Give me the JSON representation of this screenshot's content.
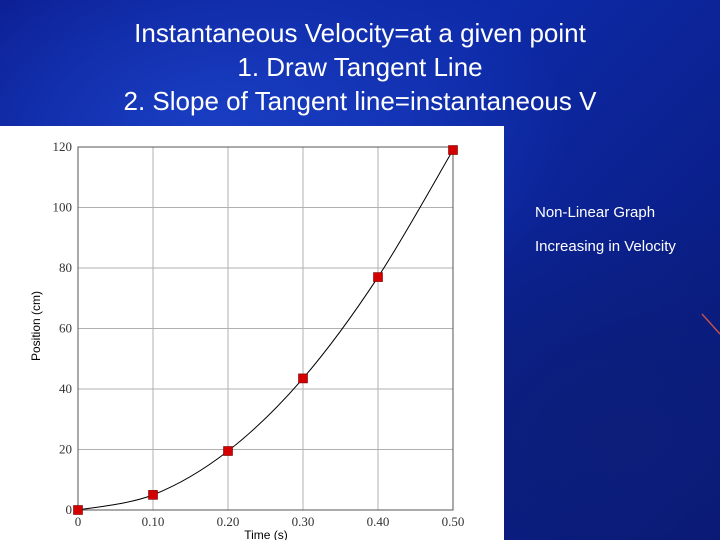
{
  "slide": {
    "title_lines": [
      "Instantaneous Velocity=at a given point",
      "1. Draw Tangent Line",
      "2. Slope of Tangent line=instantaneous V"
    ],
    "notes": [
      "Non-Linear Graph",
      "Increasing in Velocity"
    ]
  },
  "colors": {
    "background": "#0d2aa8",
    "title_text": "#ffffff",
    "marker": "#d40000",
    "curve": "#000000",
    "grid": "#b0b0b0",
    "decorative_line": "#c0504d"
  },
  "chart_data": {
    "type": "scatter",
    "title": "",
    "xlabel": "Time (s)",
    "ylabel": "Position (cm)",
    "x": [
      0,
      0.1,
      0.2,
      0.3,
      0.4,
      0.5
    ],
    "series": [
      {
        "values": [
          0,
          5,
          19.5,
          43.5,
          77,
          119
        ]
      }
    ],
    "fit_curve": "smooth increasing curve through points",
    "xlim": [
      0,
      0.5
    ],
    "ylim": [
      0,
      120
    ],
    "xticks": [
      "0",
      "0.10",
      "0.20",
      "0.30",
      "0.40",
      "0.50"
    ],
    "yticks": [
      "0",
      "20",
      "40",
      "60",
      "80",
      "100",
      "120"
    ],
    "grid": true
  }
}
